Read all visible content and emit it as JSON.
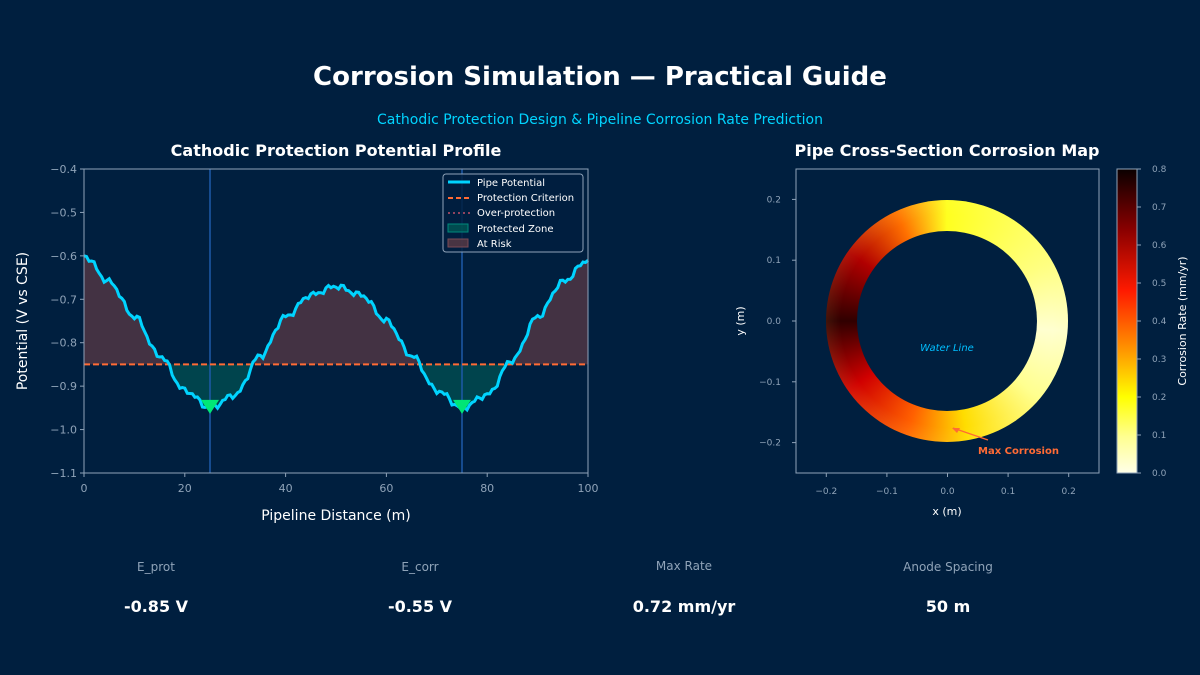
{
  "header": {
    "title": "Corrosion Simulation — Practical Guide",
    "subtitle": "Cathodic Protection Design & Pipeline Corrosion Rate Prediction"
  },
  "chart_data": [
    {
      "type": "line",
      "title": "Cathodic Protection Potential Profile",
      "xlabel": "Pipeline Distance (m)",
      "ylabel": "Potential (V vs CSE)",
      "xlim": [
        0,
        100
      ],
      "ylim": [
        -1.1,
        -0.4
      ],
      "xticks": [
        "0",
        "20",
        "40",
        "60",
        "80",
        "100"
      ],
      "yticks": [
        "−0.4",
        "−0.5",
        "−0.6",
        "−0.7",
        "−0.8",
        "−0.9",
        "−1.0",
        "−1.1"
      ],
      "x": [
        0,
        5,
        10,
        15,
        20,
        25,
        30,
        35,
        40,
        45,
        50,
        55,
        60,
        65,
        70,
        75,
        80,
        85,
        90,
        95,
        100
      ],
      "series": [
        {
          "name": "Pipe Potential",
          "values": [
            -0.6,
            -0.66,
            -0.74,
            -0.83,
            -0.91,
            -0.95,
            -0.92,
            -0.83,
            -0.74,
            -0.69,
            -0.67,
            -0.69,
            -0.75,
            -0.83,
            -0.91,
            -0.95,
            -0.92,
            -0.84,
            -0.74,
            -0.66,
            -0.61
          ]
        }
      ],
      "protection_criterion": -0.85,
      "anodes": [
        25,
        75
      ],
      "legend": [
        "Pipe Potential",
        "Protection Criterion",
        "Over-protection",
        "Protected Zone",
        "At Risk"
      ],
      "legend_position": "top-right",
      "colors": {
        "line": "#00d4ff",
        "criterion": "#ff6b35",
        "over": "#c0506a",
        "protected": "#00695c",
        "risk": "#5a3a45",
        "anode": "#00e676"
      }
    },
    {
      "type": "heatmap",
      "title": "Pipe Cross-Section Corrosion Map",
      "xlabel": "x (m)",
      "ylabel": "y (m)",
      "xlim": [
        -0.25,
        0.25
      ],
      "ylim": [
        -0.25,
        0.25
      ],
      "xticks": [
        "−0.2",
        "−0.1",
        "0.0",
        "0.1",
        "0.2"
      ],
      "yticks": [
        "0.2",
        "0.1",
        "0.0",
        "−0.1",
        "−0.2"
      ],
      "outer_radius": 0.2,
      "inner_radius": 0.15,
      "colorbar": {
        "label": "Corrosion Rate (mm/yr)",
        "range": [
          0,
          0.8
        ],
        "ticks": [
          "0.8",
          "0.7",
          "0.6",
          "0.5",
          "0.4",
          "0.3",
          "0.2",
          "0.1",
          "0.0"
        ]
      },
      "annotations": [
        "Water Line",
        "Max Corrosion"
      ]
    }
  ],
  "metrics": [
    {
      "label": "E_prot",
      "value": "-0.85 V"
    },
    {
      "label": "E_corr",
      "value": "-0.55 V"
    },
    {
      "label": "Max Rate",
      "value": "0.72 mm/yr"
    },
    {
      "label": "Anode Spacing",
      "value": "50 m"
    }
  ]
}
